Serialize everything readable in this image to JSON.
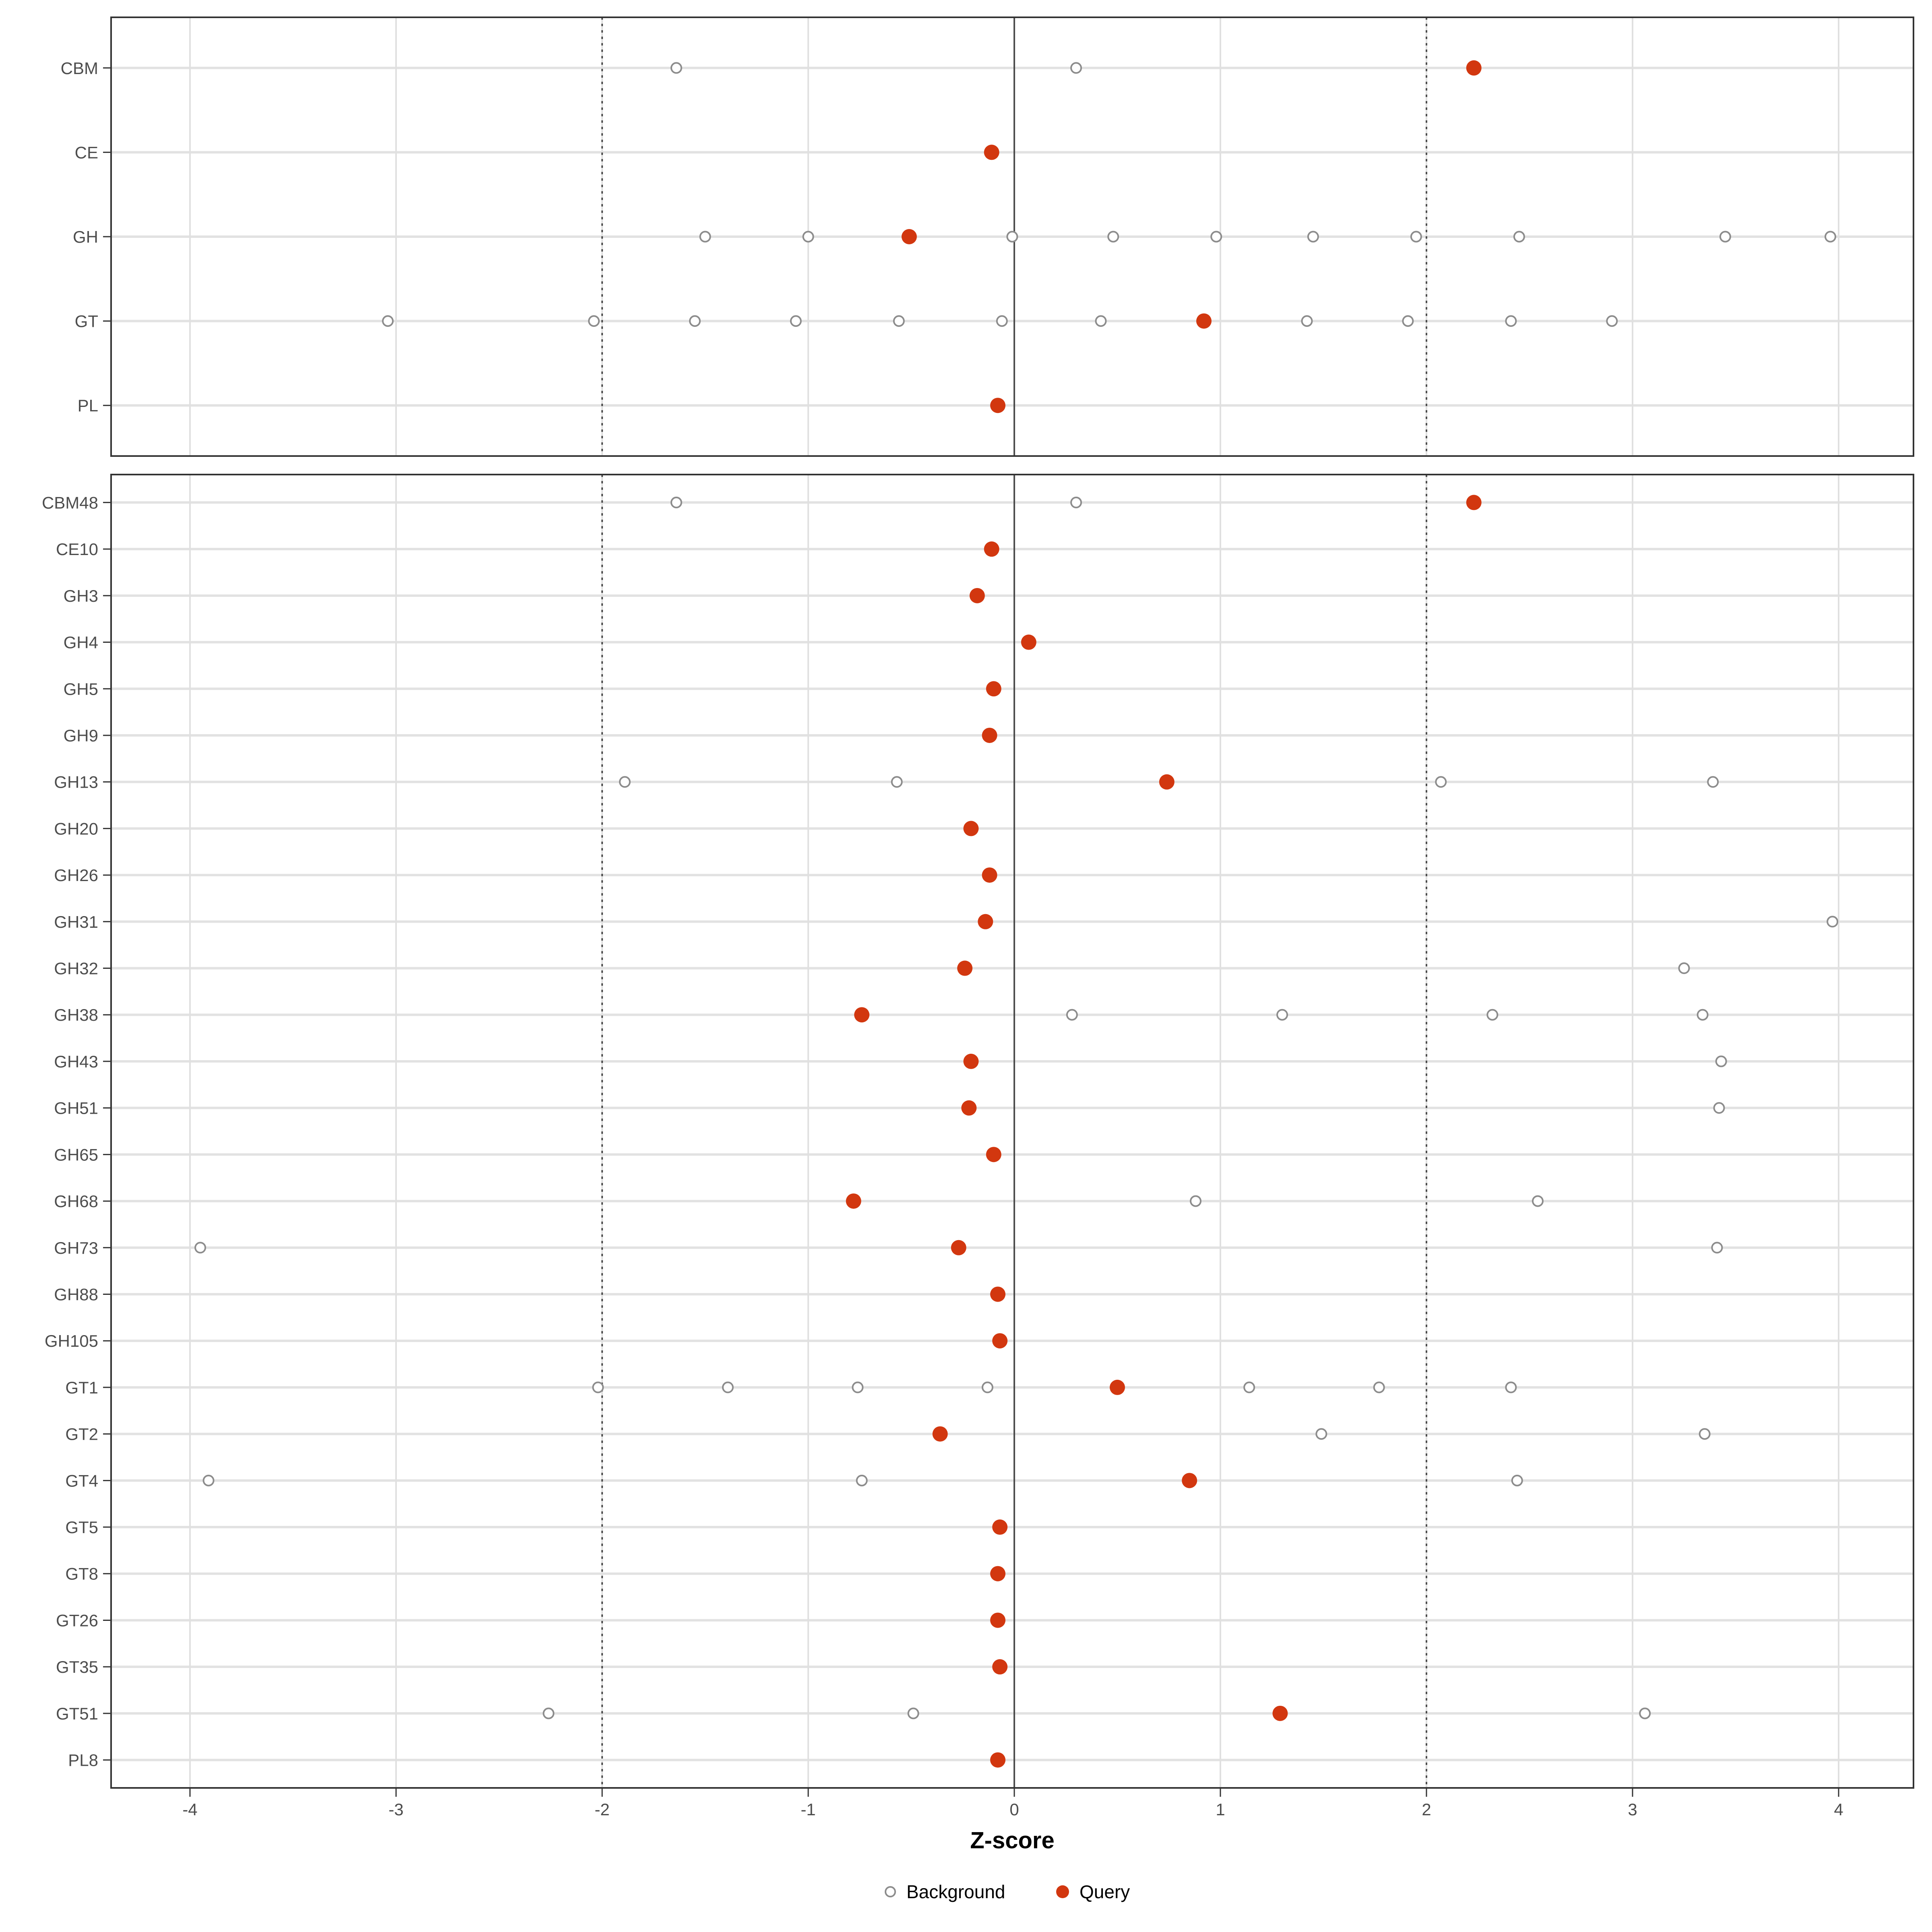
{
  "chart_data": {
    "type": "scatter",
    "title": "",
    "xlabel": "Z-score",
    "ylabel": "",
    "xlim": [
      -4.4,
      4.4
    ],
    "x_ticks": [
      -4,
      -3,
      -2,
      -1,
      0,
      1,
      2,
      3,
      4
    ],
    "grid": "on",
    "reference_lines": {
      "solid_at": 0,
      "dashed_at": [
        -2,
        2
      ]
    },
    "legend_position": "bottom",
    "legend": [
      {
        "label": "Background",
        "style": "open-circle"
      },
      {
        "label": "Query",
        "style": "filled-circle"
      }
    ],
    "colors": {
      "query_fill": "#D2370F",
      "background_stroke": "#8C8C8C",
      "row_gridline": "#E2E2E2",
      "tick_gridline": "#E0E0E0",
      "reference_line": "#4D4D4D",
      "panel_border": "#333333",
      "axis_text": "#4D4D4D"
    },
    "panels": [
      {
        "name": "family-summary",
        "rows": [
          {
            "label": "CBM",
            "bg": [
              -1.64,
              0.3
            ],
            "q": 2.23
          },
          {
            "label": "CE",
            "bg": [],
            "q": -0.11
          },
          {
            "label": "GH",
            "bg": [
              -1.5,
              -1.0,
              -0.01,
              0.48,
              0.98,
              1.45,
              1.95,
              2.45,
              3.45,
              3.96
            ],
            "q": -0.51
          },
          {
            "label": "GT",
            "bg": [
              -3.04,
              -2.04,
              -1.55,
              -1.06,
              -0.56,
              -0.06,
              0.42,
              1.42,
              1.91,
              2.41,
              2.9
            ],
            "q": 0.92
          },
          {
            "label": "PL",
            "bg": [],
            "q": -0.08
          }
        ]
      },
      {
        "name": "subfamily-detail",
        "rows": [
          {
            "label": "CBM48",
            "bg": [
              -1.64,
              0.3
            ],
            "q": 2.23
          },
          {
            "label": "CE10",
            "bg": [],
            "q": -0.11
          },
          {
            "label": "GH3",
            "bg": [],
            "q": -0.18
          },
          {
            "label": "GH4",
            "bg": [],
            "q": 0.07
          },
          {
            "label": "GH5",
            "bg": [],
            "q": -0.1
          },
          {
            "label": "GH9",
            "bg": [],
            "q": -0.12
          },
          {
            "label": "GH13",
            "bg": [
              -1.89,
              -0.57,
              2.07,
              3.39
            ],
            "q": 0.74
          },
          {
            "label": "GH20",
            "bg": [],
            "q": -0.21
          },
          {
            "label": "GH26",
            "bg": [],
            "q": -0.12
          },
          {
            "label": "GH31",
            "bg": [
              3.97
            ],
            "q": -0.14
          },
          {
            "label": "GH32",
            "bg": [
              3.25
            ],
            "q": -0.24
          },
          {
            "label": "GH38",
            "bg": [
              0.28,
              1.3,
              2.32,
              3.34
            ],
            "q": -0.74
          },
          {
            "label": "GH43",
            "bg": [
              3.43
            ],
            "q": -0.21
          },
          {
            "label": "GH51",
            "bg": [
              3.42
            ],
            "q": -0.22
          },
          {
            "label": "GH65",
            "bg": [],
            "q": -0.1
          },
          {
            "label": "GH68",
            "bg": [
              0.88,
              2.54
            ],
            "q": -0.78
          },
          {
            "label": "GH73",
            "bg": [
              -3.95,
              3.41
            ],
            "q": -0.27
          },
          {
            "label": "GH88",
            "bg": [],
            "q": -0.08
          },
          {
            "label": "GH105",
            "bg": [],
            "q": -0.07
          },
          {
            "label": "GT1",
            "bg": [
              -2.02,
              -1.39,
              -0.76,
              -0.13,
              1.14,
              1.77,
              2.41
            ],
            "q": 0.5
          },
          {
            "label": "GT2",
            "bg": [
              1.49,
              3.35
            ],
            "q": -0.36
          },
          {
            "label": "GT4",
            "bg": [
              -3.91,
              -0.74,
              2.44
            ],
            "q": 0.85
          },
          {
            "label": "GT5",
            "bg": [],
            "q": -0.07
          },
          {
            "label": "GT8",
            "bg": [],
            "q": -0.08
          },
          {
            "label": "GT26",
            "bg": [],
            "q": -0.08
          },
          {
            "label": "GT35",
            "bg": [],
            "q": -0.07
          },
          {
            "label": "GT51",
            "bg": [
              -2.26,
              -0.49,
              3.06
            ],
            "q": 1.29
          },
          {
            "label": "PL8",
            "bg": [],
            "q": -0.08
          }
        ]
      }
    ]
  }
}
